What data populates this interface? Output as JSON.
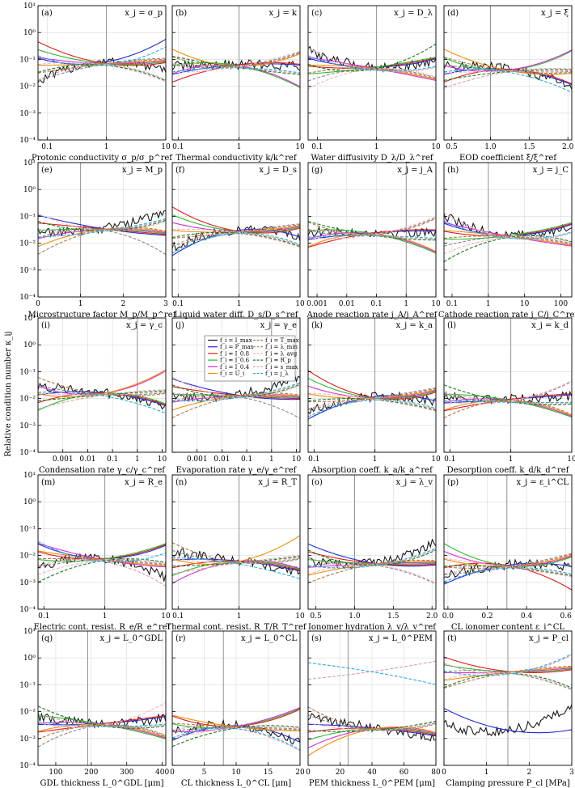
{
  "figure": {
    "ylabel": "Relative condition number κ_ij",
    "y_ticks": [
      "10⁻⁴",
      "10⁻³",
      "10⁻²",
      "10⁻¹",
      "10⁰",
      "10¹"
    ],
    "legend": [
      {
        "label": "f_i = I_max",
        "color": "#1a1a1a",
        "dash": false
      },
      {
        "label": "f_i = P_max",
        "color": "#1f2bd6",
        "dash": false
      },
      {
        "label": "f_i = I_0.8",
        "color": "#e21b1b",
        "dash": false
      },
      {
        "label": "f_i = I_0.6",
        "color": "#2fb82f",
        "dash": false
      },
      {
        "label": "f_i = I_0.4",
        "color": "#d62fd6",
        "dash": false
      },
      {
        "label": "f_i = U_i",
        "color": "#f28c0c",
        "dash": false
      },
      {
        "label": "f_i = T_max",
        "color": "#b07a50",
        "dash": true
      },
      {
        "label": "f_i = λ_min",
        "color": "#8a8a8a",
        "dash": true
      },
      {
        "label": "f_i = λ_avg",
        "color": "#f5b5c0",
        "dash": true
      },
      {
        "label": "f_i = R_p",
        "color": "#1f7a1f",
        "dash": true
      },
      {
        "label": "f_i = s_max",
        "color": "#d9a0a8",
        "dash": true
      },
      {
        "label": "f_i = j_λ",
        "color": "#29aee0",
        "dash": true
      }
    ]
  },
  "chart_data": [
    {
      "tag": "(a)",
      "var": "x_j = σ_p",
      "xlabel": "Protonic conductivity σ_p/σ_p^ref",
      "xscale": "log",
      "xlim": [
        0.07,
        10
      ],
      "x_ticks": [
        {
          "v": 0.1,
          "l": "0.1"
        },
        {
          "v": 1,
          "l": "1"
        },
        {
          "v": 10,
          "l": "10"
        }
      ],
      "vline": 1
    },
    {
      "tag": "(b)",
      "var": "x_j = k",
      "xlabel": "Thermal conductivity k/k^ref",
      "xscale": "log",
      "xlim": [
        0.08,
        10
      ],
      "x_ticks": [
        {
          "v": 0.1,
          "l": "0.1"
        },
        {
          "v": 1,
          "l": "1"
        },
        {
          "v": 10,
          "l": "10"
        }
      ],
      "vline": 1
    },
    {
      "tag": "(c)",
      "var": "x_j = D_λ",
      "xlabel": "Water diffusivity D_λ/D_λ^ref",
      "xscale": "log",
      "xlim": [
        0.07,
        10
      ],
      "x_ticks": [
        {
          "v": 0.1,
          "l": "0.1"
        },
        {
          "v": 1,
          "l": "1"
        },
        {
          "v": 10,
          "l": "10"
        }
      ],
      "vline": 1
    },
    {
      "tag": "(d)",
      "var": "x_j = ξ",
      "xlabel": "EOD coefficient ξ/ξ^ref",
      "xscale": "lin",
      "xlim": [
        0.4,
        2.05
      ],
      "x_ticks": [
        {
          "v": 0.5,
          "l": "0.5"
        },
        {
          "v": 1,
          "l": "1.0"
        },
        {
          "v": 1.5,
          "l": "1.5"
        },
        {
          "v": 2,
          "l": "2.0"
        }
      ],
      "vline": 1
    },
    {
      "tag": "(e)",
      "var": "x_j = M_p",
      "xlabel": "Microstructure factor M_p/M_p^ref",
      "xscale": "lin",
      "xlim": [
        0,
        3
      ],
      "x_ticks": [
        {
          "v": 0,
          "l": "0"
        },
        {
          "v": 1,
          "l": "1"
        },
        {
          "v": 2,
          "l": "2"
        },
        {
          "v": 3,
          "l": "3"
        }
      ],
      "vline": 1
    },
    {
      "tag": "(f)",
      "var": "x_j = D_s",
      "xlabel": "Liquid water diff. D_s/D_s^ref",
      "xscale": "log",
      "xlim": [
        0.08,
        10
      ],
      "x_ticks": [
        {
          "v": 0.1,
          "l": "0.1"
        },
        {
          "v": 1,
          "l": "1"
        },
        {
          "v": 10,
          "l": "10"
        }
      ],
      "vline": 1
    },
    {
      "tag": "(g)",
      "var": "x_j = j_A",
      "xlabel": "Anode reaction rate j_A/j_A^ref",
      "xscale": "log",
      "xlim": [
        0.0005,
        10
      ],
      "x_ticks": [
        {
          "v": 0.001,
          "l": "0.001"
        },
        {
          "v": 0.01,
          "l": "0.01"
        },
        {
          "v": 0.1,
          "l": "0.1"
        },
        {
          "v": 1,
          "l": "1"
        },
        {
          "v": 10,
          "l": "10"
        }
      ],
      "vline": 1
    },
    {
      "tag": "(h)",
      "var": "x_j = j_C",
      "xlabel": "Cathode reaction rate j_C/j_C^ref",
      "xscale": "log",
      "xlim": [
        0.06,
        200
      ],
      "x_ticks": [
        {
          "v": 0.1,
          "l": "0.1"
        },
        {
          "v": 1,
          "l": "1"
        },
        {
          "v": 10,
          "l": "10"
        },
        {
          "v": 100,
          "l": "100"
        }
      ],
      "vline": 1
    },
    {
      "tag": "(i)",
      "var": "x_j = γ_c",
      "xlabel": "Condensation rate γ_c/γ_c^ref",
      "xscale": "log",
      "xlim": [
        0.0001,
        14
      ],
      "x_ticks": [
        {
          "v": 0.001,
          "l": "0.001"
        },
        {
          "v": 0.01,
          "l": "0.01"
        },
        {
          "v": 0.1,
          "l": "0.1"
        },
        {
          "v": 1,
          "l": "1"
        },
        {
          "v": 10,
          "l": "10"
        }
      ],
      "vline": 1
    },
    {
      "tag": "(j)",
      "var": "x_j = γ_e",
      "xlabel": "Evaporation rate γ_e/γ_e^ref",
      "xscale": "log",
      "xlim": [
        0.0001,
        14
      ],
      "x_ticks": [
        {
          "v": 0.001,
          "l": "0.001"
        },
        {
          "v": 0.01,
          "l": "0.01"
        },
        {
          "v": 0.1,
          "l": "0.1"
        },
        {
          "v": 1,
          "l": "1"
        },
        {
          "v": 10,
          "l": "10"
        }
      ],
      "vline": 1
    },
    {
      "tag": "(k)",
      "var": "x_j = k_a",
      "xlabel": "Absorption coeff. k_a/k_a^ref",
      "xscale": "log",
      "xlim": [
        0.08,
        10
      ],
      "x_ticks": [
        {
          "v": 0.1,
          "l": "0.1"
        },
        {
          "v": 1,
          "l": "1"
        },
        {
          "v": 10,
          "l": "10"
        }
      ],
      "vline": 1
    },
    {
      "tag": "(l)",
      "var": "x_j = k_d",
      "xlabel": "Desorption coeff. k_d/k_d^ref",
      "xscale": "log",
      "xlim": [
        0.08,
        10
      ],
      "x_ticks": [
        {
          "v": 0.1,
          "l": "0.1"
        },
        {
          "v": 1,
          "l": "1"
        },
        {
          "v": 10,
          "l": "10"
        }
      ],
      "vline": 1
    },
    {
      "tag": "(m)",
      "var": "x_j = R_e",
      "xlabel": "Electric cont. resist. R_e/R_e^ref",
      "xscale": "log",
      "xlim": [
        0.08,
        10
      ],
      "x_ticks": [
        {
          "v": 0.1,
          "l": "0.1"
        },
        {
          "v": 1,
          "l": "1"
        },
        {
          "v": 10,
          "l": "10"
        }
      ],
      "vline": 1
    },
    {
      "tag": "(n)",
      "var": "x_j = R_T",
      "xlabel": "Thermal cont. resist. R_T/R_T^ref",
      "xscale": "log",
      "xlim": [
        0.08,
        10
      ],
      "x_ticks": [
        {
          "v": 0.1,
          "l": "0.1"
        },
        {
          "v": 1,
          "l": "1"
        },
        {
          "v": 10,
          "l": "10"
        }
      ],
      "vline": 1
    },
    {
      "tag": "(o)",
      "var": "x_j = λ_v",
      "xlabel": "Ionomer hydration λ_v/λ_v^ref",
      "xscale": "lin",
      "xlim": [
        0.4,
        2.05
      ],
      "x_ticks": [
        {
          "v": 0.5,
          "l": "0.5"
        },
        {
          "v": 1,
          "l": "1.0"
        },
        {
          "v": 1.5,
          "l": "1.5"
        },
        {
          "v": 2,
          "l": "2.0"
        }
      ],
      "vline": 1
    },
    {
      "tag": "(p)",
      "var": "x_j = ε_i^CL",
      "xlabel": "CL ionomer content ε_i^CL",
      "xscale": "lin",
      "xlim": [
        -0.02,
        0.63
      ],
      "x_ticks": [
        {
          "v": 0,
          "l": "0.0"
        },
        {
          "v": 0.2,
          "l": "0.2"
        },
        {
          "v": 0.4,
          "l": "0.4"
        },
        {
          "v": 0.6,
          "l": "0.6"
        }
      ],
      "vline": 0.3
    },
    {
      "tag": "(q)",
      "var": "x_j = L_0^GDL",
      "xlabel": "GDL thickness L_0^GDL [μm]",
      "xscale": "lin",
      "xlim": [
        50,
        410
      ],
      "x_ticks": [
        {
          "v": 100,
          "l": "100"
        },
        {
          "v": 200,
          "l": "200"
        },
        {
          "v": 300,
          "l": "300"
        },
        {
          "v": 400,
          "l": "400"
        }
      ],
      "vline": 190
    },
    {
      "tag": "(r)",
      "var": "x_j = L_0^CL",
      "xlabel": "CL thickness L_0^CL [μm]",
      "xscale": "lin",
      "xlim": [
        0,
        20
      ],
      "x_ticks": [
        {
          "v": 0,
          "l": "0"
        },
        {
          "v": 5,
          "l": "5"
        },
        {
          "v": 10,
          "l": "10"
        },
        {
          "v": 15,
          "l": "15"
        },
        {
          "v": 20,
          "l": "20"
        }
      ],
      "vline": 8
    },
    {
      "tag": "(s)",
      "var": "x_j = L_0^PEM",
      "xlabel": "PEM thickness L_0^PEM [μm]",
      "xscale": "lin",
      "xlim": [
        0,
        80
      ],
      "x_ticks": [
        {
          "v": 0,
          "l": "0"
        },
        {
          "v": 20,
          "l": "20"
        },
        {
          "v": 40,
          "l": "40"
        },
        {
          "v": 60,
          "l": "60"
        },
        {
          "v": 80,
          "l": "80"
        }
      ],
      "vline": 25
    },
    {
      "tag": "(t)",
      "var": "x_j = P_cl",
      "xlabel": "Clamping pressure P_cl [MPa]",
      "xscale": "lin",
      "xlim": [
        0,
        3
      ],
      "x_ticks": [
        {
          "v": 0,
          "l": "0"
        },
        {
          "v": 1,
          "l": "1"
        },
        {
          "v": 2,
          "l": "2"
        },
        {
          "v": 3,
          "l": "3"
        }
      ],
      "vline": 1.5
    }
  ]
}
